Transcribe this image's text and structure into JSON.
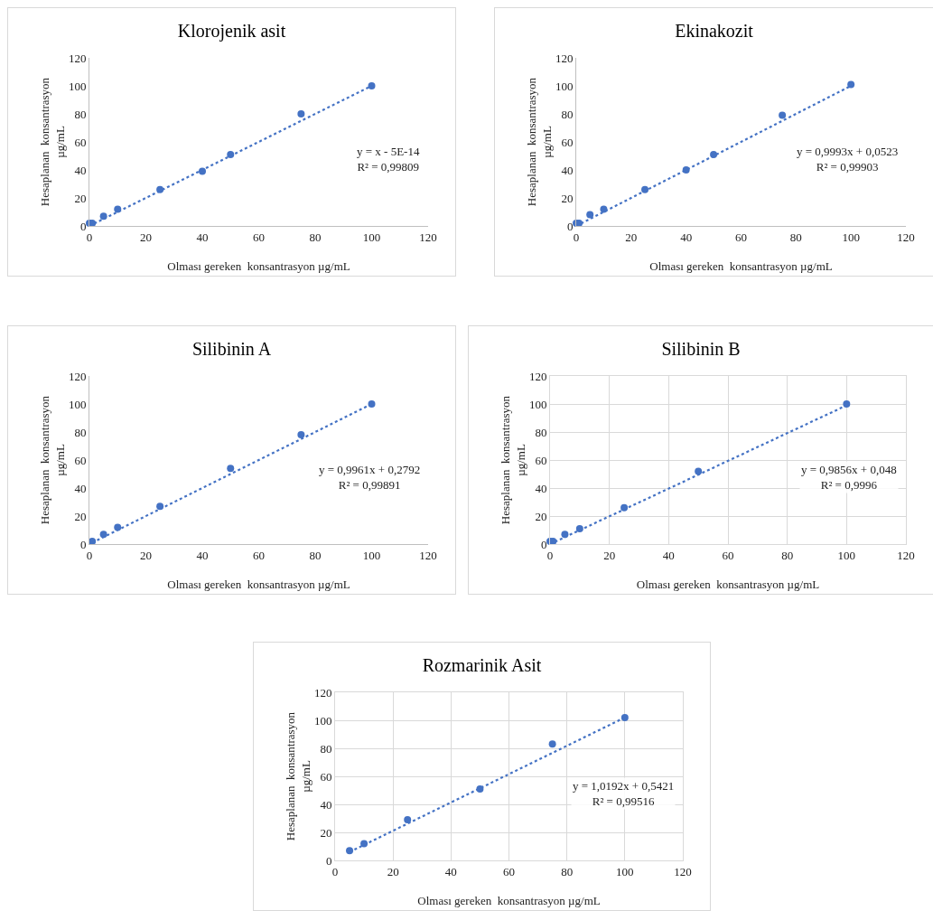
{
  "chart_data": [
    {
      "type": "scatter",
      "title": "Klorojenik asit",
      "xlabel": "Olması gereken  konsantrasyon µg/mL",
      "ylabel": "Hesaplanan  konsantrasyon µg/mL",
      "xlim": [
        0,
        120
      ],
      "ylim": [
        0,
        120
      ],
      "xticks": [
        0,
        20,
        40,
        60,
        80,
        100,
        120
      ],
      "yticks": [
        0,
        20,
        40,
        60,
        80,
        100,
        120
      ],
      "grid": false,
      "annotations": [
        "y = x - 5E-14\nR² = 0,99809"
      ],
      "series": [
        {
          "color": "#4472c4",
          "marker": "circle",
          "x": [
            0,
            1,
            5,
            10,
            25,
            40,
            50,
            75,
            100
          ],
          "values": [
            2,
            2,
            7,
            12,
            26,
            39,
            51,
            80,
            100
          ]
        },
        {
          "type": "line",
          "color": "#4472c4",
          "marker": "none",
          "line_style": "dotted",
          "x": [
            0,
            100
          ],
          "values": [
            0,
            100
          ]
        }
      ]
    },
    {
      "type": "scatter",
      "title": "Ekinakozit",
      "xlabel": "Olması gereken  konsantrasyon µg/mL",
      "ylabel": "Hesaplanan  konsantrasyon µg/mL",
      "xlim": [
        0,
        120
      ],
      "ylim": [
        0,
        120
      ],
      "xticks": [
        0,
        20,
        40,
        60,
        80,
        100,
        120
      ],
      "yticks": [
        0,
        20,
        40,
        60,
        80,
        100,
        120
      ],
      "grid": false,
      "annotations": [
        "y = 0,9993x + 0,0523\nR² = 0,99903"
      ],
      "series": [
        {
          "color": "#4472c4",
          "marker": "circle",
          "x": [
            0,
            1,
            5,
            10,
            25,
            40,
            50,
            75,
            100
          ],
          "values": [
            2,
            2,
            8,
            12,
            26,
            40,
            51,
            79,
            101
          ]
        },
        {
          "type": "line",
          "color": "#4472c4",
          "marker": "none",
          "line_style": "dotted",
          "x": [
            0,
            100
          ],
          "values": [
            0,
            100
          ]
        }
      ]
    },
    {
      "type": "scatter",
      "title": "Silibinin A",
      "xlabel": "Olması gereken  konsantrasyon µg/mL",
      "ylabel": "Hesaplanan  konsantrasyon µg/mL",
      "xlim": [
        0,
        120
      ],
      "ylim": [
        0,
        120
      ],
      "xticks": [
        0,
        20,
        40,
        60,
        80,
        100,
        120
      ],
      "yticks": [
        0,
        20,
        40,
        60,
        80,
        100,
        120
      ],
      "grid": false,
      "annotations": [
        "y = 0,9961x + 0,2792\nR² = 0,99891"
      ],
      "series": [
        {
          "color": "#4472c4",
          "marker": "circle",
          "x": [
            1,
            5,
            10,
            25,
            50,
            75,
            100
          ],
          "values": [
            2,
            7,
            12,
            27,
            54,
            78,
            100
          ]
        },
        {
          "type": "line",
          "color": "#4472c4",
          "marker": "none",
          "line_style": "dotted",
          "x": [
            1,
            100
          ],
          "values": [
            1,
            100
          ]
        }
      ]
    },
    {
      "type": "scatter",
      "title": "Silibinin B",
      "xlabel": "Olması gereken  konsantrasyon µg/mL",
      "ylabel": "Hesaplanan  konsantrasyon µg/mL",
      "xlim": [
        0,
        120
      ],
      "ylim": [
        0,
        120
      ],
      "xticks": [
        0,
        20,
        40,
        60,
        80,
        100,
        120
      ],
      "yticks": [
        0,
        20,
        40,
        60,
        80,
        100,
        120
      ],
      "grid": true,
      "annotations": [
        "y = 0,9856x + 0,048\nR² = 0,9996"
      ],
      "series": [
        {
          "color": "#4472c4",
          "marker": "circle",
          "x": [
            0,
            1,
            5,
            10,
            25,
            50,
            100
          ],
          "values": [
            2,
            2,
            7,
            11,
            26,
            52,
            100
          ]
        },
        {
          "type": "line",
          "color": "#4472c4",
          "marker": "none",
          "line_style": "dotted",
          "x": [
            0,
            100
          ],
          "values": [
            0,
            99
          ]
        }
      ]
    },
    {
      "type": "scatter",
      "title": "Rozmarinik Asit",
      "xlabel": "Olması gereken  konsantrasyon µg/mL",
      "ylabel": "Hesaplanan  konsantrasyon µg/mL",
      "xlim": [
        0,
        120
      ],
      "ylim": [
        0,
        120
      ],
      "xticks": [
        0,
        20,
        40,
        60,
        80,
        100,
        120
      ],
      "yticks": [
        0,
        20,
        40,
        60,
        80,
        100,
        120
      ],
      "grid": true,
      "annotations": [
        "y = 1,0192x + 0,5421\nR² = 0,99516"
      ],
      "series": [
        {
          "color": "#4472c4",
          "marker": "circle",
          "x": [
            5,
            10,
            25,
            50,
            75,
            100
          ],
          "values": [
            7,
            12,
            29,
            51,
            83,
            102
          ]
        },
        {
          "type": "line",
          "color": "#4472c4",
          "marker": "none",
          "line_style": "dotted",
          "x": [
            5,
            100
          ],
          "values": [
            6,
            102
          ]
        }
      ]
    }
  ]
}
